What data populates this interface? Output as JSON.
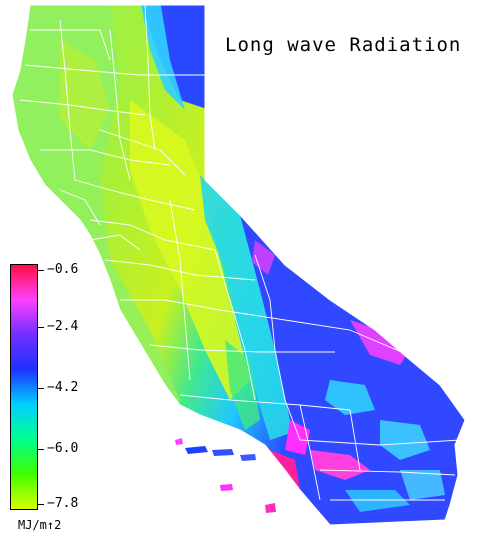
{
  "map": {
    "title": "Long wave Radiation",
    "region": "California",
    "legend": {
      "ticks": [
        "−0.6",
        "−2.4",
        "−4.2",
        "−6.0",
        "−7.8"
      ],
      "unit": "MJ/m↑2",
      "colors": [
        "#ff1040",
        "#ff40ff",
        "#7030ff",
        "#2030ff",
        "#00d0ff",
        "#00ff90",
        "#40ff00",
        "#d8ff00"
      ]
    },
    "palette": {
      "coast_green": "#9cf050",
      "valley_yellow": "#d8f820",
      "sierra_cyan": "#30d8ff",
      "desert_blue": "#3048ff",
      "peak_magenta": "#ff30ff",
      "county_lines": "#ffffff"
    }
  }
}
